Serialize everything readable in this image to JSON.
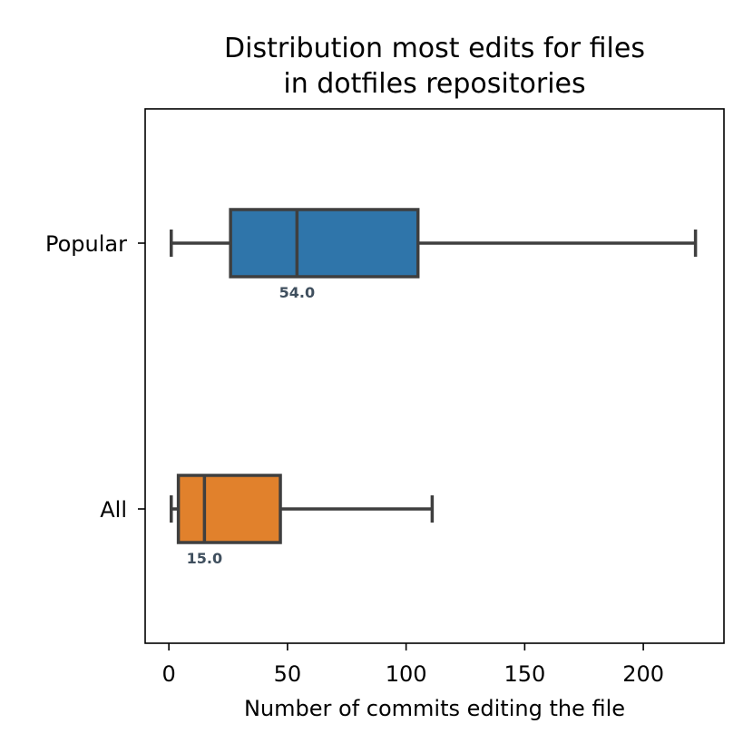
{
  "chart_data": {
    "type": "boxplot",
    "orientation": "horizontal",
    "title": [
      "Distribution most edits for files",
      "in dotfiles repositories"
    ],
    "xlabel": "Number of commits editing the file",
    "ylabel": "",
    "xlim": [
      -10,
      234
    ],
    "xticks": [
      0,
      50,
      100,
      150,
      200
    ],
    "xtick_labels": [
      "0",
      "50",
      "100",
      "150",
      "200"
    ],
    "grid": false,
    "categories": [
      "Popular",
      "All"
    ],
    "series": [
      {
        "name": "Popular",
        "min": 1,
        "q1": 26,
        "median": 54,
        "q3": 105,
        "max": 222,
        "median_label": "54.0",
        "color": "#2f75aa"
      },
      {
        "name": "All",
        "min": 1,
        "q1": 4,
        "median": 15,
        "q3": 47,
        "max": 111,
        "median_label": "15.0",
        "color": "#e1812c"
      }
    ],
    "line_color": "#3f3f3f"
  }
}
